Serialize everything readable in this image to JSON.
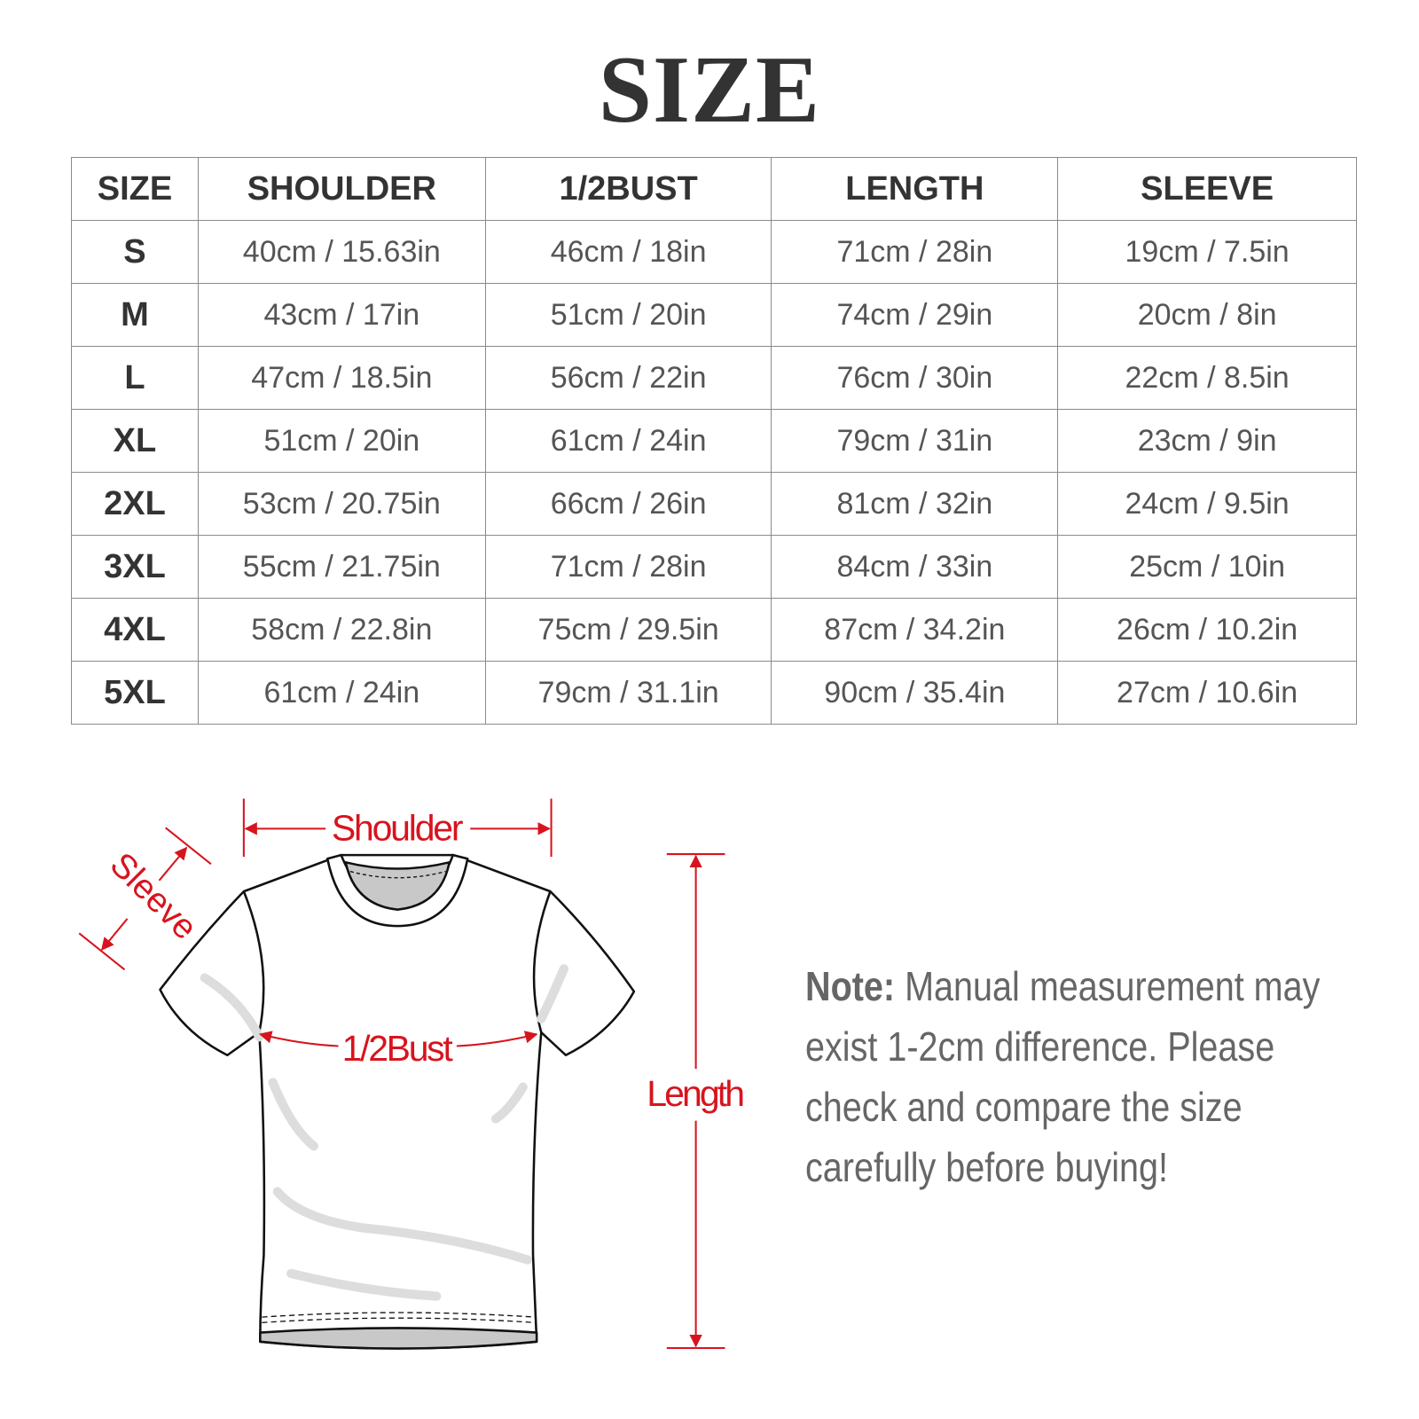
{
  "title": "SIZE",
  "table": {
    "headers": [
      "SIZE",
      "SHOULDER",
      "1/2BUST",
      "LENGTH",
      "SLEEVE"
    ],
    "rows": [
      [
        "S",
        "40cm / 15.63in",
        "46cm / 18in",
        "71cm / 28in",
        "19cm / 7.5in"
      ],
      [
        "M",
        "43cm / 17in",
        "51cm / 20in",
        "74cm / 29in",
        "20cm / 8in"
      ],
      [
        "L",
        "47cm / 18.5in",
        "56cm / 22in",
        "76cm / 30in",
        "22cm / 8.5in"
      ],
      [
        "XL",
        "51cm / 20in",
        "61cm / 24in",
        "79cm / 31in",
        "23cm / 9in"
      ],
      [
        "2XL",
        "53cm / 20.75in",
        "66cm / 26in",
        "81cm / 32in",
        "24cm / 9.5in"
      ],
      [
        "3XL",
        "55cm / 21.75in",
        "71cm / 28in",
        "84cm / 33in",
        "25cm / 10in"
      ],
      [
        "4XL",
        "58cm / 22.8in",
        "75cm / 29.5in",
        "87cm / 34.2in",
        "26cm / 10.2in"
      ],
      [
        "5XL",
        "61cm / 24in",
        "79cm / 31.1in",
        "90cm / 35.4in",
        "27cm / 10.6in"
      ]
    ]
  },
  "diagram": {
    "shoulder_label": "Shoulder",
    "sleeve_label": "Sleeve",
    "bust_label": "1/2Bust",
    "length_label": "Length",
    "accent_color": "#d7141e"
  },
  "note": {
    "label": "Note:",
    "text": "Manual measurement may exist 1-2cm difference. Please check and compare the size carefully before buying!"
  }
}
